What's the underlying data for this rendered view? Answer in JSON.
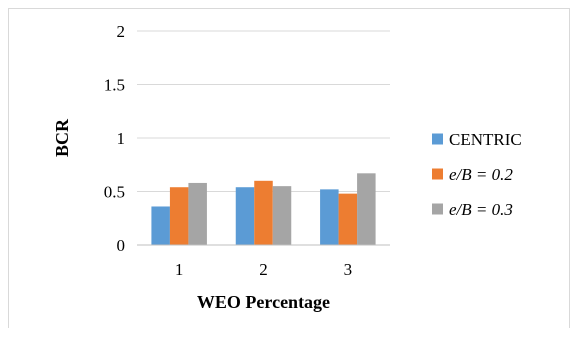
{
  "chart_data": {
    "type": "bar",
    "categories": [
      "1",
      "2",
      "3"
    ],
    "series": [
      {
        "name": "CENTRIC",
        "values": [
          0.36,
          0.54,
          0.52
        ],
        "color": "#5b9bd5"
      },
      {
        "name": "e/B = 0.2",
        "values": [
          0.54,
          0.6,
          0.48
        ],
        "color": "#ed7d31"
      },
      {
        "name": "e/B = 0.3",
        "values": [
          0.58,
          0.55,
          0.67
        ],
        "color": "#a5a5a5"
      }
    ],
    "title": "",
    "xlabel": "WEO Percentage",
    "ylabel": "BCR",
    "ylim": [
      0,
      2
    ],
    "yticks": [
      "0",
      "0.5",
      "1",
      "1.5",
      "2"
    ],
    "grid": true,
    "legend": "right"
  }
}
